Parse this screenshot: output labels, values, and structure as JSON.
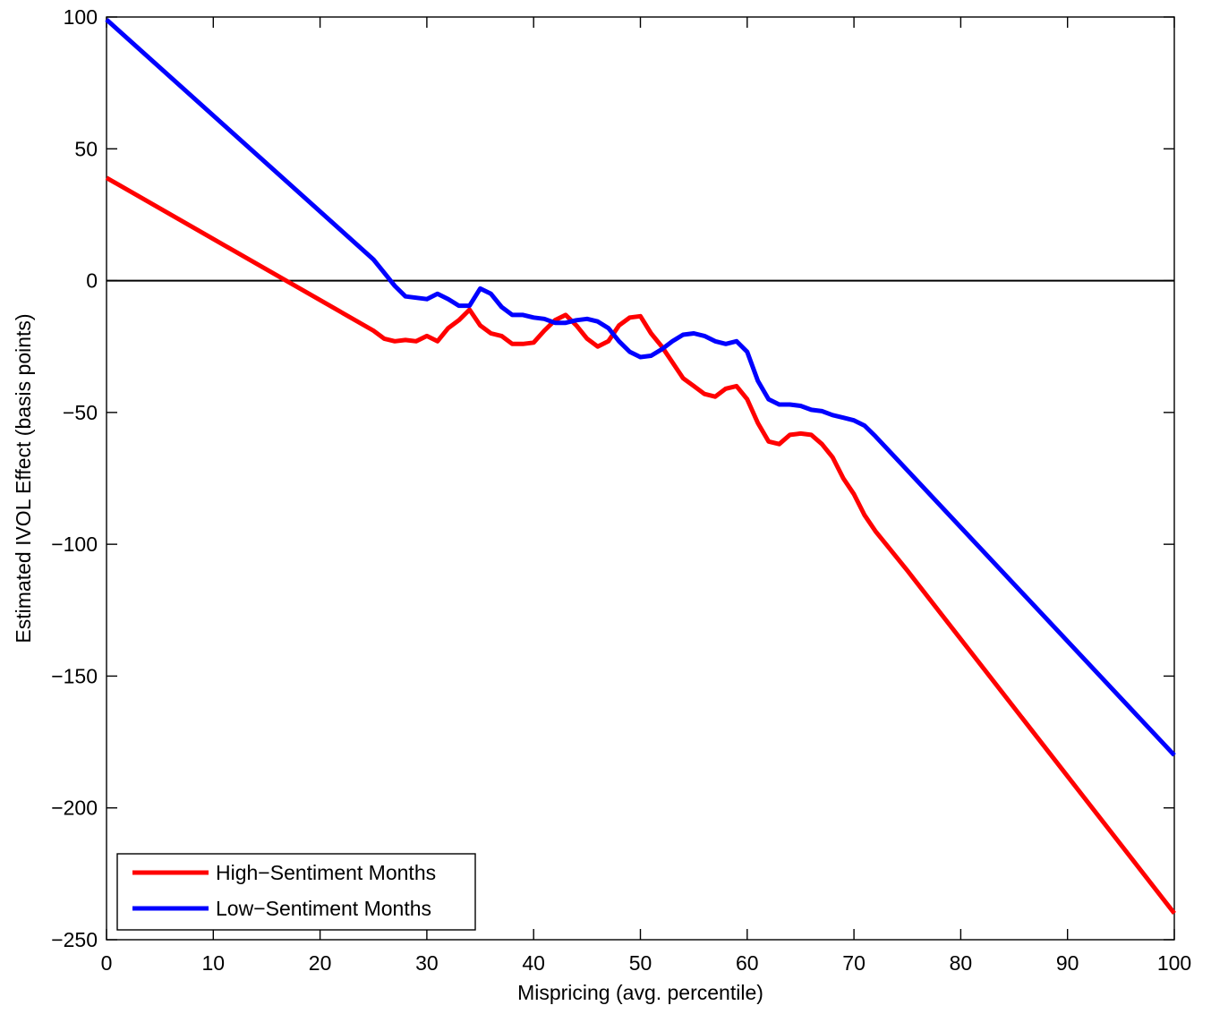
{
  "chart_data": {
    "type": "line",
    "title": "",
    "xlabel": "Mispricing (avg. percentile)",
    "ylabel": "Estimated IVOL Effect (basis points)",
    "xlim": [
      0,
      100
    ],
    "ylim": [
      -250,
      100
    ],
    "xticks": [
      0,
      10,
      20,
      30,
      40,
      50,
      60,
      70,
      80,
      90,
      100
    ],
    "yticks": [
      -250,
      -200,
      -150,
      -100,
      -50,
      0,
      50,
      100
    ],
    "grid": false,
    "legend_position": "bottom-left",
    "reference_line_y": 0,
    "series": [
      {
        "name": "High−Sentiment Months",
        "color": "#ff0000",
        "x": [
          0,
          25,
          26,
          27,
          28,
          29,
          30,
          31,
          32,
          33,
          34,
          35,
          36,
          37,
          38,
          39,
          40,
          41,
          42,
          43,
          44,
          45,
          46,
          47,
          48,
          49,
          50,
          51,
          52,
          53,
          54,
          55,
          56,
          57,
          58,
          59,
          60,
          61,
          62,
          63,
          64,
          65,
          66,
          67,
          68,
          69,
          70,
          71,
          72,
          73,
          75,
          100
        ],
        "y": [
          39,
          -19,
          -22,
          -23,
          -22.5,
          -23,
          -21,
          -23,
          -18,
          -15,
          -11,
          -17,
          -20,
          -21,
          -24,
          -24,
          -23.5,
          -19,
          -15,
          -13,
          -17,
          -22,
          -25,
          -23,
          -17,
          -14,
          -13.5,
          -20,
          -25,
          -31,
          -37,
          -40,
          -43,
          -44,
          -41,
          -40,
          -45,
          -54,
          -61,
          -62,
          -58.5,
          -58,
          -58.5,
          -62,
          -67,
          -75,
          -81,
          -89,
          -95,
          -100,
          -110,
          -240
        ]
      },
      {
        "name": "Low−Sentiment Months",
        "color": "#0000ff",
        "x": [
          0,
          25,
          26,
          27,
          28,
          29,
          30,
          31,
          32,
          33,
          34,
          35,
          36,
          37,
          38,
          39,
          40,
          41,
          42,
          43,
          44,
          45,
          46,
          47,
          48,
          49,
          50,
          51,
          52,
          53,
          54,
          55,
          56,
          57,
          58,
          59,
          60,
          61,
          62,
          63,
          64,
          65,
          66,
          67,
          68,
          69,
          70,
          71,
          72,
          100
        ],
        "y": [
          99,
          8,
          3,
          -2,
          -6,
          -6.5,
          -7,
          -5,
          -7,
          -9.5,
          -9.5,
          -3,
          -5,
          -10,
          -13,
          -13,
          -14,
          -14.5,
          -16,
          -16,
          -15,
          -14.5,
          -15.5,
          -18,
          -23,
          -27,
          -29,
          -28.5,
          -26,
          -23,
          -20.5,
          -20,
          -21,
          -23,
          -24,
          -23,
          -27,
          -38,
          -45,
          -47,
          -47,
          -47.5,
          -49,
          -49.5,
          -51,
          -52,
          -53,
          -55,
          -59,
          -180
        ]
      }
    ]
  }
}
